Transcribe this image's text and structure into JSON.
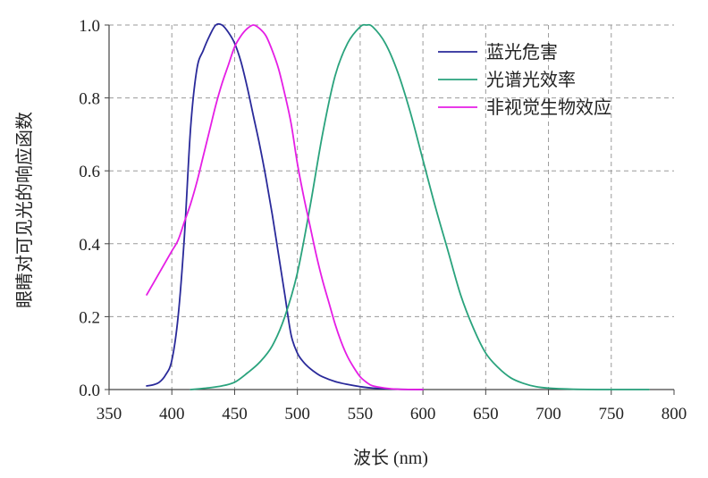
{
  "chart_data": {
    "type": "line",
    "xlabel": "波长 (nm)",
    "ylabel": "眼睛对可见光的响应函数",
    "xlim": [
      350,
      800
    ],
    "ylim": [
      0.0,
      1.0
    ],
    "x_ticks": [
      "350",
      "400",
      "450",
      "500",
      "550",
      "600",
      "650",
      "700",
      "750",
      "800"
    ],
    "y_ticks": [
      "0.0",
      "0.2",
      "0.4",
      "0.6",
      "0.8",
      "1.0"
    ],
    "grid": true,
    "grid_style": "dashed",
    "legend_position": "top-right",
    "series": [
      {
        "name": "蓝光危害",
        "color": "#2a2a9a",
        "points": [
          [
            380,
            0.01
          ],
          [
            385,
            0.013
          ],
          [
            390,
            0.02
          ],
          [
            395,
            0.04
          ],
          [
            400,
            0.08
          ],
          [
            405,
            0.2
          ],
          [
            410,
            0.42
          ],
          [
            415,
            0.72
          ],
          [
            420,
            0.88
          ],
          [
            425,
            0.93
          ],
          [
            430,
            0.97
          ],
          [
            435,
            1.0
          ],
          [
            440,
            1.0
          ],
          [
            445,
            0.98
          ],
          [
            450,
            0.95
          ],
          [
            455,
            0.9
          ],
          [
            460,
            0.83
          ],
          [
            465,
            0.75
          ],
          [
            470,
            0.67
          ],
          [
            475,
            0.58
          ],
          [
            480,
            0.48
          ],
          [
            485,
            0.37
          ],
          [
            490,
            0.26
          ],
          [
            495,
            0.15
          ],
          [
            500,
            0.1
          ],
          [
            505,
            0.075
          ],
          [
            510,
            0.058
          ],
          [
            515,
            0.045
          ],
          [
            520,
            0.035
          ],
          [
            530,
            0.022
          ],
          [
            540,
            0.014
          ],
          [
            550,
            0.008
          ],
          [
            560,
            0.004
          ],
          [
            580,
            0.001
          ],
          [
            600,
            0.0
          ]
        ]
      },
      {
        "name": "光谱光效率",
        "color": "#2aa37d",
        "points": [
          [
            415,
            0.0
          ],
          [
            430,
            0.005
          ],
          [
            440,
            0.01
          ],
          [
            450,
            0.02
          ],
          [
            460,
            0.045
          ],
          [
            470,
            0.075
          ],
          [
            480,
            0.12
          ],
          [
            490,
            0.2
          ],
          [
            500,
            0.32
          ],
          [
            510,
            0.5
          ],
          [
            520,
            0.7
          ],
          [
            530,
            0.86
          ],
          [
            540,
            0.95
          ],
          [
            550,
            0.995
          ],
          [
            555,
            1.0
          ],
          [
            560,
            0.995
          ],
          [
            570,
            0.95
          ],
          [
            580,
            0.87
          ],
          [
            590,
            0.76
          ],
          [
            600,
            0.63
          ],
          [
            610,
            0.5
          ],
          [
            620,
            0.38
          ],
          [
            630,
            0.26
          ],
          [
            640,
            0.17
          ],
          [
            650,
            0.1
          ],
          [
            660,
            0.06
          ],
          [
            670,
            0.032
          ],
          [
            680,
            0.017
          ],
          [
            690,
            0.008
          ],
          [
            700,
            0.004
          ],
          [
            720,
            0.001
          ],
          [
            750,
            0.0
          ],
          [
            780,
            0.0
          ]
        ]
      },
      {
        "name": "非视觉生物效应",
        "color": "#e51ee5",
        "points": [
          [
            380,
            0.26
          ],
          [
            385,
            0.29
          ],
          [
            390,
            0.32
          ],
          [
            395,
            0.35
          ],
          [
            400,
            0.38
          ],
          [
            405,
            0.41
          ],
          [
            410,
            0.46
          ],
          [
            415,
            0.51
          ],
          [
            420,
            0.57
          ],
          [
            425,
            0.64
          ],
          [
            430,
            0.71
          ],
          [
            435,
            0.78
          ],
          [
            440,
            0.84
          ],
          [
            445,
            0.89
          ],
          [
            450,
            0.94
          ],
          [
            455,
            0.97
          ],
          [
            460,
            0.99
          ],
          [
            465,
            1.0
          ],
          [
            470,
            0.99
          ],
          [
            475,
            0.97
          ],
          [
            480,
            0.93
          ],
          [
            485,
            0.88
          ],
          [
            490,
            0.81
          ],
          [
            495,
            0.73
          ],
          [
            500,
            0.62
          ],
          [
            505,
            0.53
          ],
          [
            510,
            0.45
          ],
          [
            515,
            0.37
          ],
          [
            520,
            0.3
          ],
          [
            525,
            0.24
          ],
          [
            530,
            0.18
          ],
          [
            535,
            0.13
          ],
          [
            540,
            0.09
          ],
          [
            545,
            0.06
          ],
          [
            550,
            0.035
          ],
          [
            555,
            0.02
          ],
          [
            560,
            0.01
          ],
          [
            570,
            0.004
          ],
          [
            580,
            0.001
          ],
          [
            600,
            0.0
          ]
        ]
      }
    ]
  }
}
